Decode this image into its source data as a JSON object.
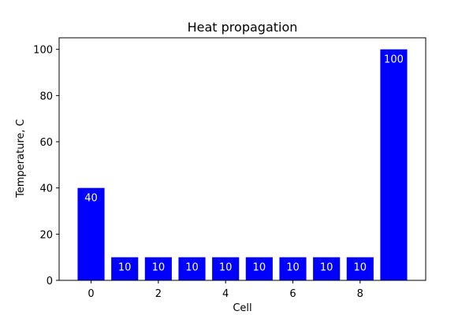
{
  "chart_data": {
    "type": "bar",
    "title": "Heat propagation",
    "xlabel": "Cell",
    "ylabel": "Temperature, C",
    "x": [
      0,
      1,
      2,
      3,
      4,
      5,
      6,
      7,
      8,
      9
    ],
    "values": [
      40,
      10,
      10,
      10,
      10,
      10,
      10,
      10,
      10,
      100
    ],
    "data_labels": [
      "40",
      "10",
      "10",
      "10",
      "10",
      "10",
      "10",
      "10",
      "10",
      "100"
    ],
    "xticks": [
      0,
      2,
      4,
      6,
      8
    ],
    "yticks": [
      0,
      20,
      40,
      60,
      80,
      100
    ],
    "xlim": [
      -0.95,
      9.95
    ],
    "ylim": [
      0,
      105
    ],
    "bar_width": 0.8,
    "bar_color": "#0000ff",
    "label_color": "#ffffff",
    "grid": false,
    "legend": "none"
  }
}
